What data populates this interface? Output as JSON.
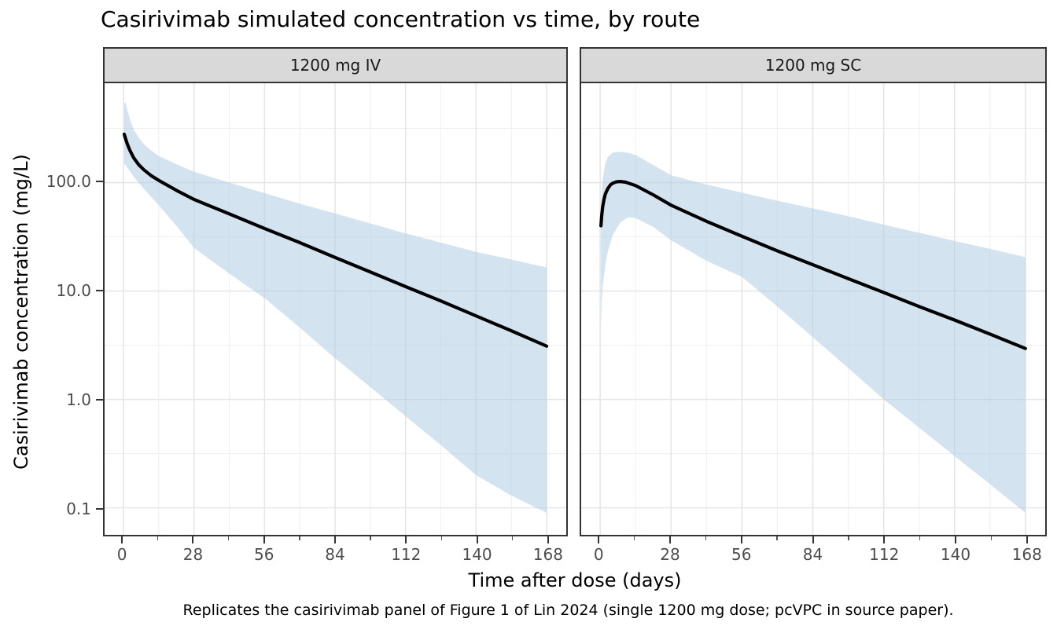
{
  "chart_data": {
    "type": "line",
    "title": "Casirivimab simulated concentration vs time, by route",
    "xlabel": "Time after dose (days)",
    "ylabel": "Casirivimab concentration (mg/L)",
    "caption": "Replicates the casirivimab panel of Figure 1 of Lin 2024 (single 1200 mg dose; pcVPC in source paper).",
    "y_scale": "log10",
    "x_domain": [
      -7.5,
      175.8
    ],
    "y_log_domain": [
      -1.249,
      2.917
    ],
    "x_ticks": [
      0,
      28,
      56,
      84,
      112,
      140,
      168
    ],
    "x_minor_ticks": [
      14,
      42,
      70,
      98,
      126,
      154
    ],
    "y_ticks": [
      100.0,
      10.0,
      1.0,
      0.1
    ],
    "y_tick_labels": [
      "100.0",
      "10.0",
      "1.0",
      "0.1"
    ],
    "y_minor_gridlines": [
      316.2,
      31.62,
      3.162,
      0.3162
    ],
    "grid": true,
    "legend": "none",
    "colors": {
      "median_line": "#000000",
      "ribbon_fill": "#aecde3",
      "ribbon_opacity": 0.55,
      "grid_major": "#e6e6e6",
      "grid_minor": "#f1f1f1",
      "panel_border": "#333333",
      "strip_bg": "#d9d9d9",
      "axis_text": "#4d4d4d"
    },
    "panels": [
      {
        "label": "1200 mg IV",
        "median": {
          "t": [
            0.3,
            0.75,
            1.5,
            2.5,
            4,
            6,
            8,
            11,
            14,
            21,
            28,
            42,
            56,
            70,
            84,
            98,
            112,
            126,
            140,
            154,
            168
          ],
          "c": [
            280,
            258,
            228,
            200,
            170,
            147,
            132,
            116,
            105,
            85,
            70,
            51.5,
            37.8,
            28,
            20.4,
            15,
            11,
            8.1,
            5.9,
            4.3,
            3.1
          ]
        },
        "ribbon": {
          "t": [
            0.3,
            0.75,
            1.5,
            2.5,
            4,
            6,
            8,
            11,
            14,
            21,
            28,
            42,
            56,
            70,
            84,
            98,
            112,
            126,
            140,
            154,
            168
          ],
          "hi": [
            540,
            555,
            470,
            390,
            310,
            262,
            228,
            198,
            176,
            148,
            126,
            100,
            80,
            64,
            52,
            42,
            34,
            28,
            23,
            19.5,
            16.5
          ],
          "lo": [
            150,
            146,
            138,
            128,
            114,
            100,
            88,
            74,
            62,
            40,
            25,
            14.5,
            8.6,
            4.6,
            2.4,
            1.3,
            0.7,
            0.38,
            0.2,
            0.13,
            0.09
          ]
        }
      },
      {
        "label": "1200 mg SC",
        "median": {
          "t": [
            0.3,
            0.6,
            1,
            1.5,
            2,
            3,
            4,
            5,
            6.5,
            8,
            10,
            14,
            21,
            28,
            42,
            56,
            70,
            84,
            98,
            112,
            126,
            140,
            154,
            168
          ],
          "c": [
            40,
            49,
            60,
            70,
            78,
            88,
            95,
            99,
            102,
            102.5,
            101,
            94,
            77,
            62,
            44,
            32,
            23.5,
            17.5,
            13,
            9.7,
            7.2,
            5.4,
            4.0,
            2.95
          ]
        },
        "ribbon": {
          "t": [
            0.3,
            0.6,
            1,
            2,
            3,
            5,
            8,
            11,
            14,
            21,
            28,
            42,
            56,
            70,
            84,
            98,
            112,
            126,
            140,
            154,
            168
          ],
          "hi": [
            62,
            82,
            108,
            150,
            172,
            190,
            193,
            188,
            180,
            145,
            117,
            96,
            81,
            68,
            58,
            49,
            41,
            34.5,
            29,
            24.5,
            20.5
          ],
          "lo": [
            4.5,
            7.5,
            11,
            17,
            23,
            33,
            43,
            48,
            47,
            39,
            29.5,
            19,
            13.5,
            7.2,
            3.75,
            1.95,
            1.0,
            0.55,
            0.3,
            0.165,
            0.09
          ]
        }
      }
    ]
  }
}
